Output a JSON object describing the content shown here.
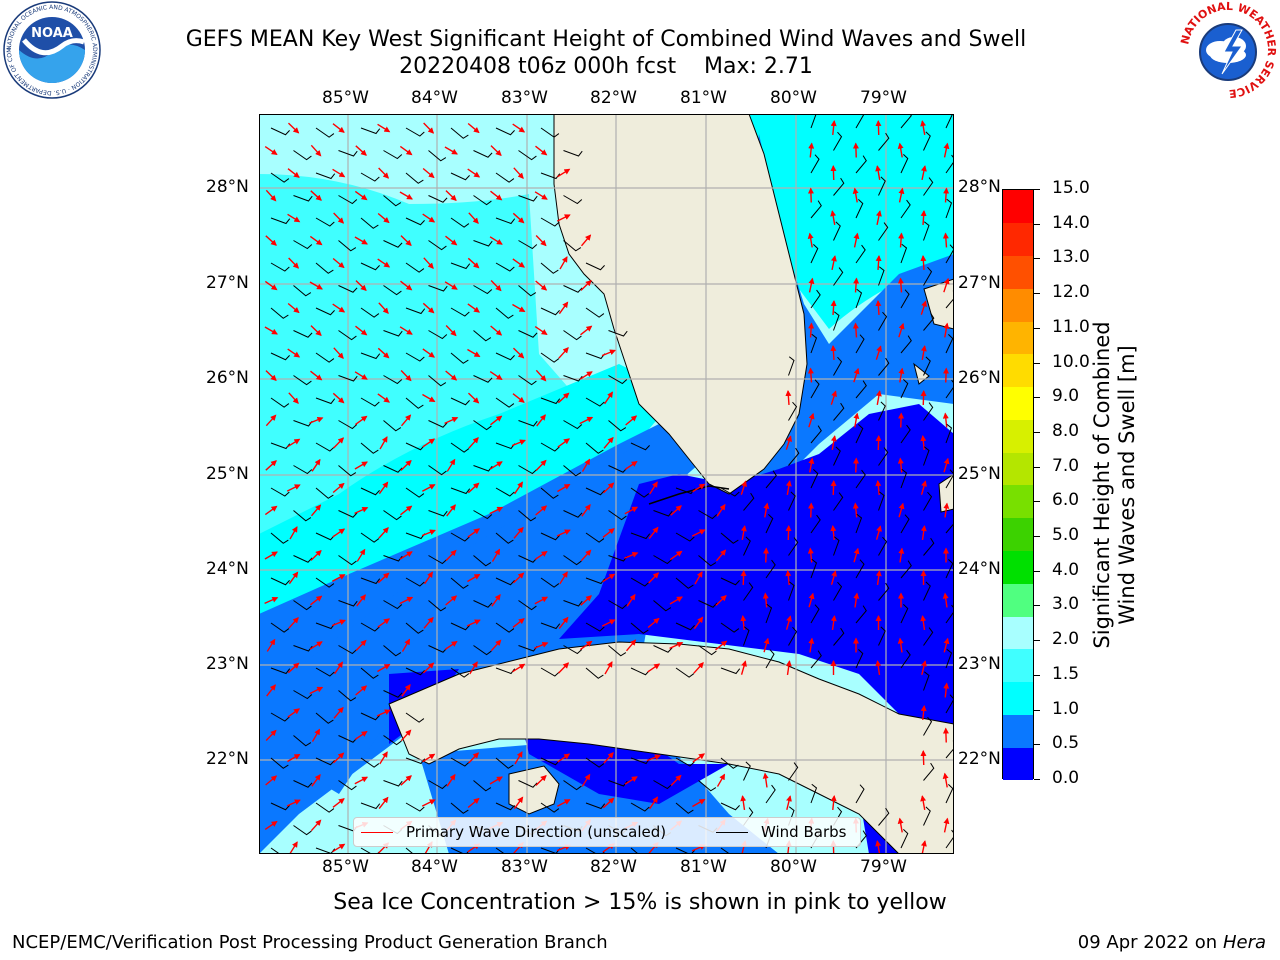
{
  "title": {
    "line1": "GEFS MEAN Key West Significant Height of Combined Wind Waves and Swell",
    "line2": "20220408 t06z 000h fcst    Max: 2.71"
  },
  "logos": {
    "left": {
      "text": "NOAA",
      "ring_text": "NATIONAL OCEANIC AND ATMOSPHERIC ADMINISTRATION · U.S. DEPARTMENT OF COMMERCE",
      "icon": "noaa-logo-icon"
    },
    "right": {
      "ring_text": "NATIONAL WEATHER SERVICE",
      "icon": "nws-logo-icon"
    }
  },
  "map": {
    "lon_labels": [
      "85°W",
      "84°W",
      "83°W",
      "82°W",
      "81°W",
      "80°W",
      "79°W"
    ],
    "lat_labels": [
      "28°N",
      "27°N",
      "26°N",
      "25°N",
      "24°N",
      "23°N",
      "22°N"
    ],
    "colors": {
      "land": "#efeddc",
      "c0": "#0000ff",
      "c05": "#0a78ff",
      "c10": "#00ffff",
      "c15": "#40ffff",
      "c20": "#a8ffff",
      "arrow": "#ff0000",
      "barb": "#000000",
      "grid": "#b0b0b0"
    }
  },
  "legend": {
    "wave_label": "Primary Wave Direction (unscaled)",
    "barb_label": "Wind Barbs"
  },
  "colorbar": {
    "title_line1": "Significant Height of Combined",
    "title_line2": "Wind Waves and Swell [m]",
    "ticks": [
      "15.0",
      "14.0",
      "13.0",
      "12.0",
      "11.0",
      "10.0",
      "9.0",
      "8.0",
      "7.0",
      "6.0",
      "5.0",
      "4.0",
      "3.0",
      "2.0",
      "1.5",
      "1.0",
      "0.5",
      "0.0"
    ],
    "colors": [
      "#0000ff",
      "#0a78ff",
      "#00ffff",
      "#40ffff",
      "#a8ffff",
      "#50ff80",
      "#00e000",
      "#3cd200",
      "#78e000",
      "#b4e600",
      "#d7f000",
      "#ffff00",
      "#ffdc00",
      "#ffb400",
      "#ff8c00",
      "#ff5000",
      "#ff2800",
      "#ff0000"
    ]
  },
  "subtitle": "Sea Ice Concentration > 15% is shown in pink to yellow",
  "footer": {
    "left": "NCEP/EMC/Verification Post Processing Product Generation Branch",
    "date": "09 Apr 2022 on",
    "host": "Hera"
  }
}
